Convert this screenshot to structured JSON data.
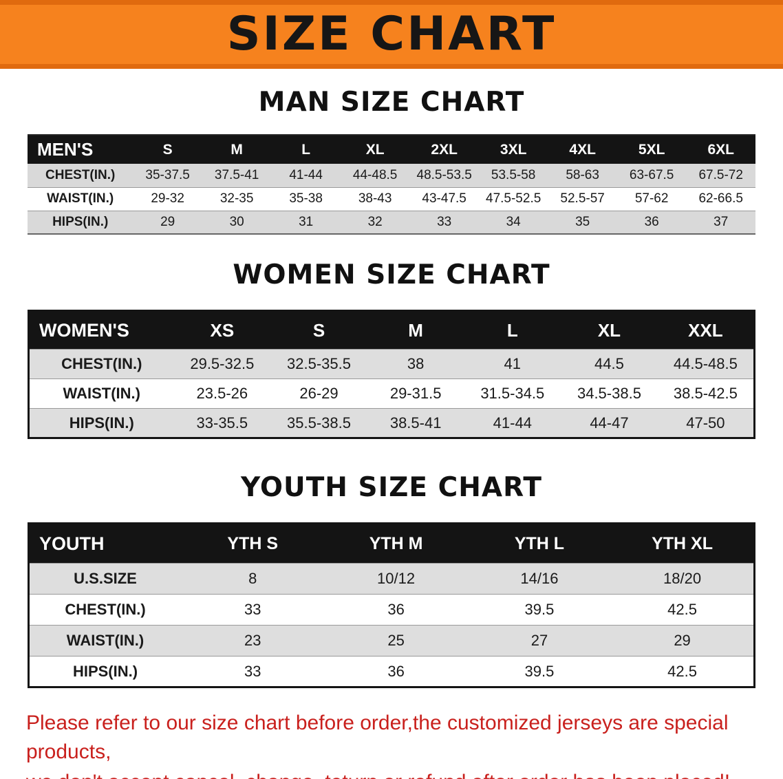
{
  "banner": {
    "title": "SIZE CHART"
  },
  "sections": [
    {
      "heading": "MAN SIZE CHART",
      "table": {
        "corner": "MEN'S",
        "columns": [
          "S",
          "M",
          "L",
          "XL",
          "2XL",
          "3XL",
          "4XL",
          "5XL",
          "6XL"
        ],
        "rows": [
          {
            "label": "CHEST(IN.)",
            "values": [
              "35-37.5",
              "37.5-41",
              "41-44",
              "44-48.5",
              "48.5-53.5",
              "53.5-58",
              "58-63",
              "63-67.5",
              "67.5-72"
            ]
          },
          {
            "label": "WAIST(IN.)",
            "values": [
              "29-32",
              "32-35",
              "35-38",
              "38-43",
              "43-47.5",
              "47.5-52.5",
              "52.5-57",
              "57-62",
              "62-66.5"
            ]
          },
          {
            "label": "HIPS(IN.)",
            "values": [
              "29",
              "30",
              "31",
              "32",
              "33",
              "34",
              "35",
              "36",
              "37"
            ]
          }
        ]
      }
    },
    {
      "heading": "WOMEN SIZE CHART",
      "table": {
        "corner": "WOMEN'S",
        "columns": [
          "XS",
          "S",
          "M",
          "L",
          "XL",
          "XXL"
        ],
        "rows": [
          {
            "label": "CHEST(IN.)",
            "values": [
              "29.5-32.5",
              "32.5-35.5",
              "38",
              "41",
              "44.5",
              "44.5-48.5"
            ]
          },
          {
            "label": "WAIST(IN.)",
            "values": [
              "23.5-26",
              "26-29",
              "29-31.5",
              "31.5-34.5",
              "34.5-38.5",
              "38.5-42.5"
            ]
          },
          {
            "label": "HIPS(IN.)",
            "values": [
              "33-35.5",
              "35.5-38.5",
              "38.5-41",
              "41-44",
              "44-47",
              "47-50"
            ]
          }
        ]
      }
    },
    {
      "heading": "YOUTH SIZE CHART",
      "table": {
        "corner": "YOUTH",
        "columns": [
          "YTH S",
          "YTH M",
          "YTH L",
          "YTH XL"
        ],
        "rows": [
          {
            "label": "U.S.SIZE",
            "values": [
              "8",
              "10/12",
              "14/16",
              "18/20"
            ]
          },
          {
            "label": "CHEST(IN.)",
            "values": [
              "33",
              "36",
              "39.5",
              "42.5"
            ]
          },
          {
            "label": "WAIST(IN.)",
            "values": [
              "23",
              "25",
              "27",
              "29"
            ]
          },
          {
            "label": "HIPS(IN.)",
            "values": [
              "33",
              "36",
              "39.5",
              "42.5"
            ]
          }
        ]
      }
    }
  ],
  "footer": {
    "line1": "Please refer to our size chart before order,the customized jerseys are special products,",
    "line2": "we don't accept cancel, change, teturn or refund after order has been placed!"
  },
  "colors": {
    "banner_bg": "#f6821e",
    "table_header_bg": "#141414",
    "row_stripe": "#d9d9d9",
    "notice_text": "#c9201d"
  }
}
